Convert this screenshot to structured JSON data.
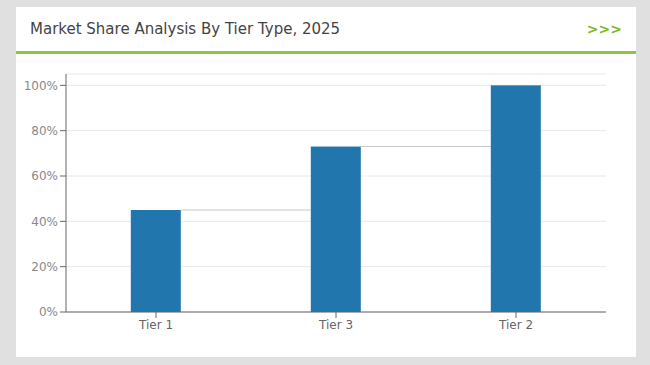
{
  "chart_data": {
    "type": "bar",
    "title": "Market Share Analysis By Tier Type, 2025",
    "categories": [
      "Tier 1",
      "Tier 3",
      "Tier 2"
    ],
    "values": [
      45,
      73,
      100
    ],
    "color": "#2176AE",
    "ylim": [
      0,
      105
    ],
    "yticks": [
      {
        "value": 0,
        "label": "0%"
      },
      {
        "value": 20,
        "label": "20%"
      },
      {
        "value": 40,
        "label": "40%"
      },
      {
        "value": 60,
        "label": "60%"
      },
      {
        "value": 80,
        "label": "80%"
      },
      {
        "value": 100,
        "label": "100%"
      }
    ],
    "grid": true,
    "annotations": [
      {
        "text": ">>>",
        "color": "#7ab826"
      }
    ]
  }
}
